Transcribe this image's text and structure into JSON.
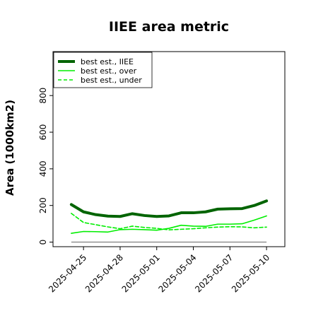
{
  "chart_data": {
    "type": "line",
    "title": "IIEE area metric",
    "xlabel": "",
    "ylabel": "Area (1000km2)",
    "x": [
      "2025-04-24",
      "2025-04-25",
      "2025-04-26",
      "2025-04-27",
      "2025-04-28",
      "2025-04-29",
      "2025-04-30",
      "2025-05-01",
      "2025-05-02",
      "2025-05-03",
      "2025-05-04",
      "2025-05-05",
      "2025-05-06",
      "2025-05-07",
      "2025-05-08",
      "2025-05-09",
      "2025-05-10"
    ],
    "x_tick_labels": [
      "2025-04-25",
      "2025-04-28",
      "2025-05-01",
      "2025-05-04",
      "2025-05-07",
      "2025-05-10"
    ],
    "y_ticks": [
      0,
      200,
      400,
      600,
      800
    ],
    "ylim": [
      -25,
      1040
    ],
    "grid": false,
    "legend_position": "top-left",
    "series": [
      {
        "name": "best est., IIEE",
        "color": "#006400",
        "style": "solid",
        "width": "thick",
        "values": [
          205,
          165,
          150,
          142,
          140,
          155,
          145,
          140,
          143,
          160,
          160,
          165,
          180,
          182,
          183,
          200,
          225
        ]
      },
      {
        "name": "best est., over",
        "color": "#00ee00",
        "style": "solid",
        "width": "normal",
        "values": [
          48,
          58,
          57,
          55,
          68,
          70,
          68,
          65,
          75,
          92,
          87,
          86,
          98,
          98,
          100,
          120,
          143
        ]
      },
      {
        "name": "best est., under",
        "color": "#00ee00",
        "style": "dashed",
        "width": "normal",
        "values": [
          157,
          107,
          95,
          83,
          73,
          87,
          80,
          75,
          67,
          70,
          73,
          78,
          82,
          84,
          83,
          78,
          82
        ]
      }
    ],
    "reference_lines": [
      {
        "y": 0,
        "color": "#808080"
      }
    ]
  }
}
